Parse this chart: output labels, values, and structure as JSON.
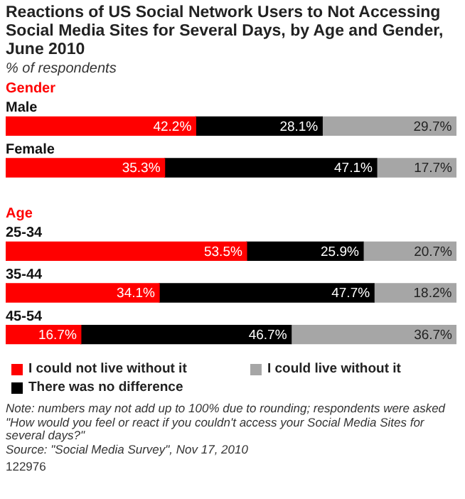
{
  "chart_data": {
    "type": "bar",
    "orientation": "horizontal",
    "stacked": true,
    "title": "Reactions of US Social Network Users to Not Accessing Social Media Sites for Several Days, by Age and Gender, June 2010",
    "subtitle": "% of respondents",
    "categories": [
      "Male",
      "Female",
      null,
      "25-34",
      "35-44",
      "45-54"
    ],
    "series": [
      {
        "name": "I could not live without it",
        "color": "#ff0000",
        "values": [
          42.2,
          35.3,
          null,
          53.5,
          34.1,
          16.7
        ],
        "value_labels": [
          "42.2%",
          "35.3%",
          null,
          "53.5%",
          "34.1%",
          "16.7%"
        ]
      },
      {
        "name": "There was no difference",
        "color": "#000000",
        "values": [
          28.1,
          47.1,
          null,
          25.9,
          47.7,
          46.7
        ],
        "value_labels": [
          "28.1%",
          "47.1%",
          null,
          "25.9%",
          "47.7%",
          "46.7%"
        ]
      },
      {
        "name": "I could live without it",
        "color": "#a6a6a6",
        "values": [
          29.7,
          17.7,
          null,
          20.7,
          18.2,
          36.7
        ],
        "value_labels": [
          "29.7%",
          "17.7%",
          null,
          "20.7%",
          "18.2%",
          "36.7%"
        ]
      }
    ],
    "legend": "bottom",
    "annotations": [
      "Gender",
      "Age",
      "Note: numbers may not add up to 100% due to rounding; respondents were asked \"How would you feel or react if you couldn't access your Social Media Sites for several days?\"",
      "Source: \"Social Media Survey\", Nov 17, 2010",
      "122976"
    ]
  }
}
